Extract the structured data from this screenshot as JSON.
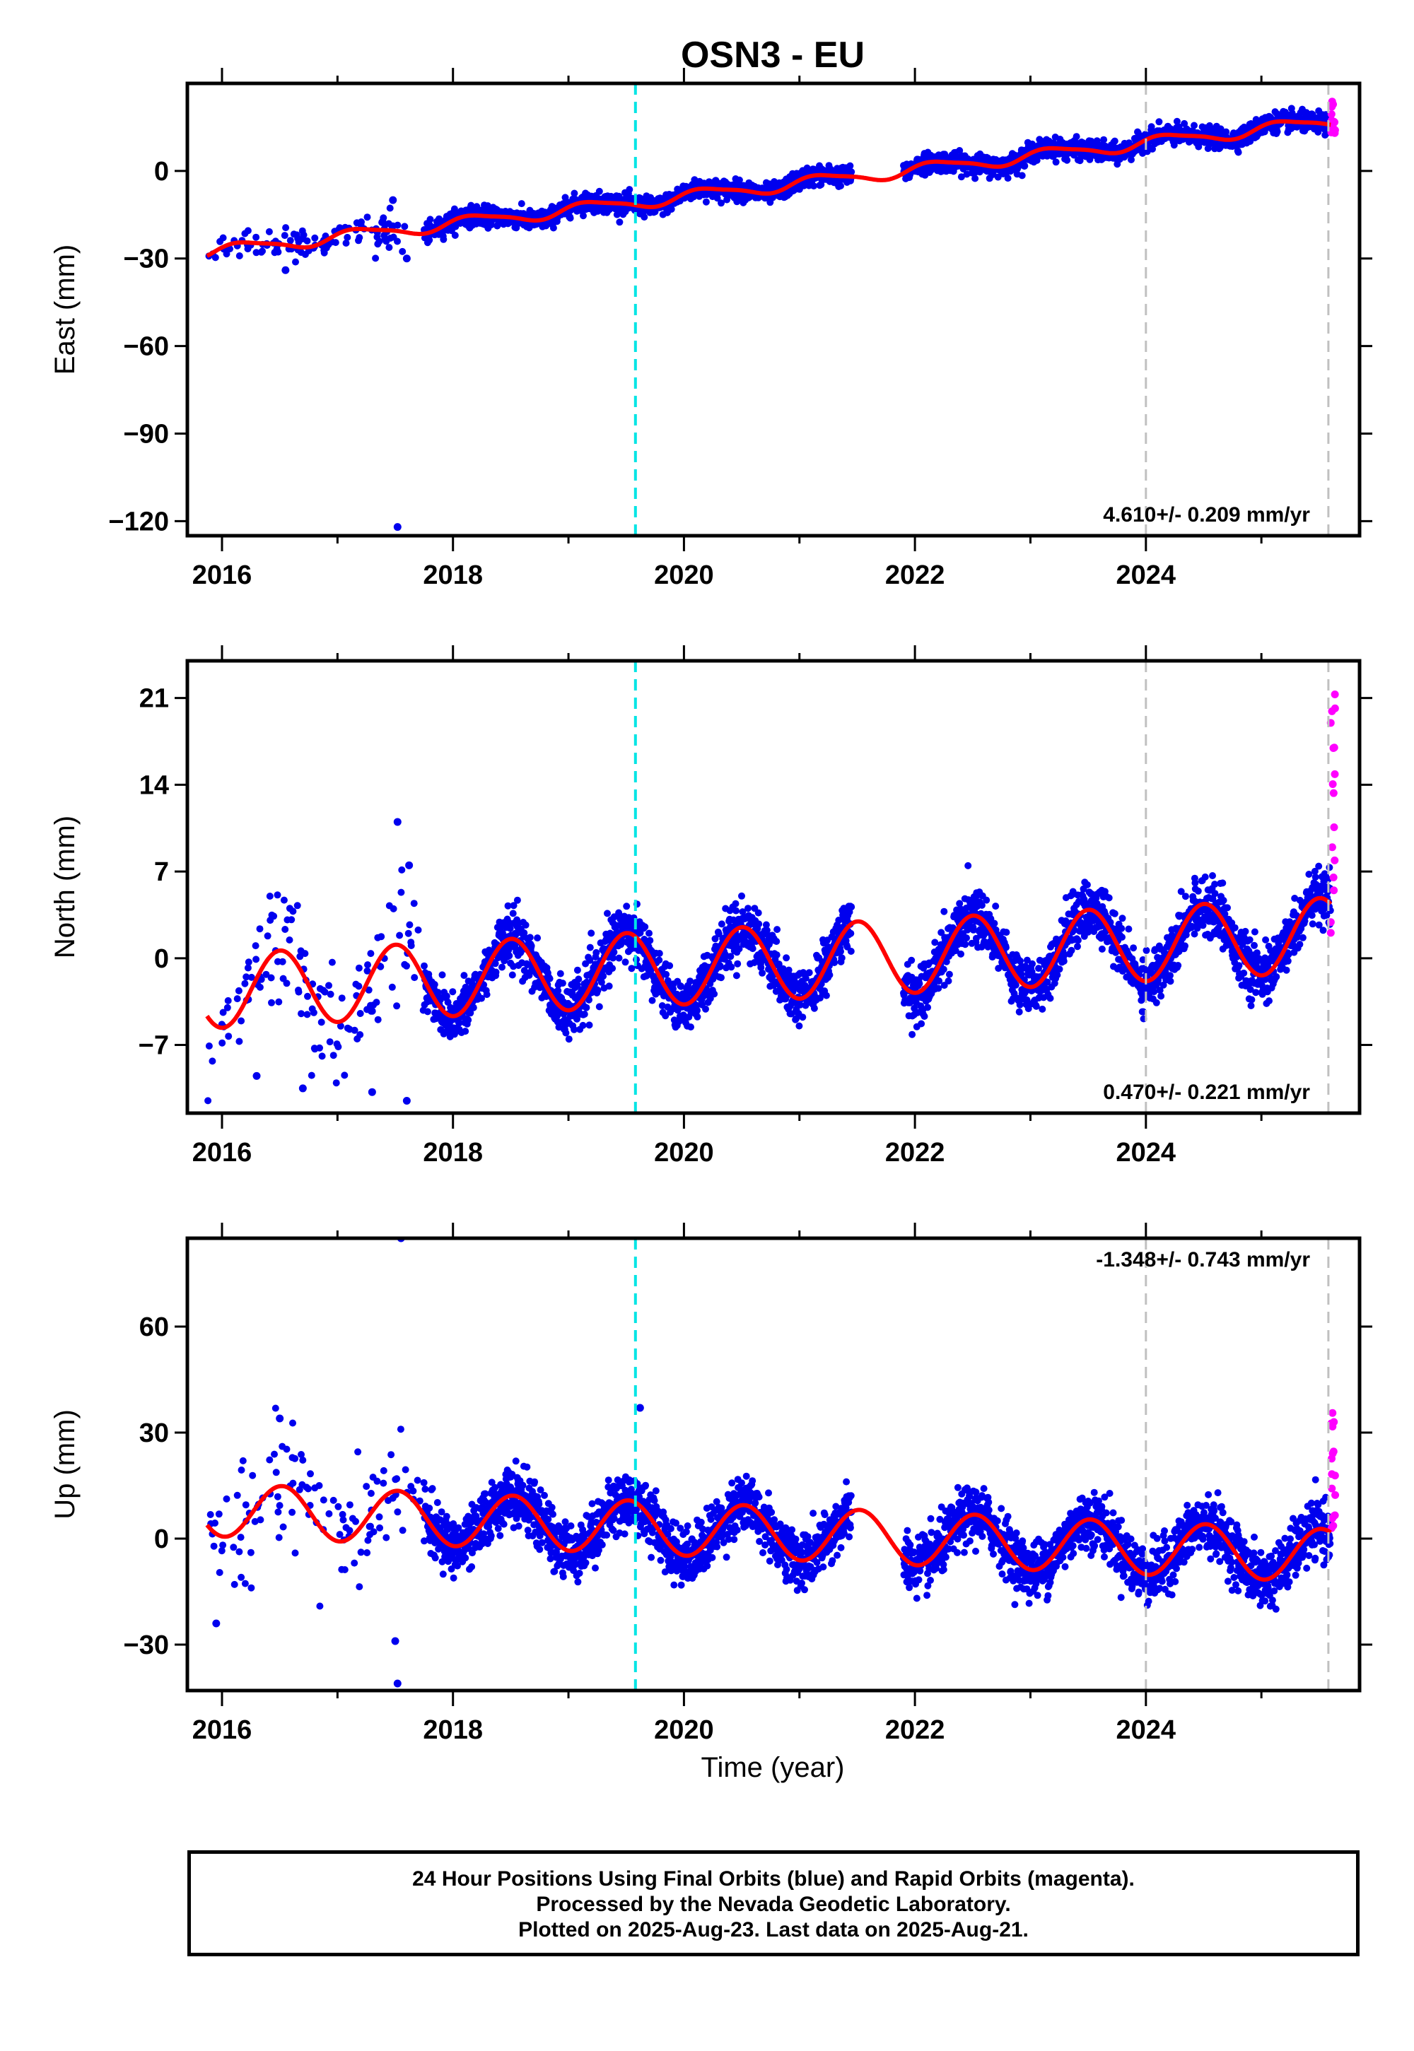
{
  "title": "OSN3 - EU",
  "xlabel": "Time (year)",
  "colors": {
    "final": "#0000ee",
    "rapid": "#ff00ff",
    "model": "#ff0000",
    "marker_cyan": "#00e5e5",
    "marker_gray": "#c0c0c0"
  },
  "footer": {
    "line1": "24 Hour Positions Using Final Orbits (blue) and Rapid Orbits (magenta).",
    "line2": "Processed by the Nevada Geodetic Laboratory.",
    "line3": "Plotted on 2025-Aug-23. Last data on 2025-Aug-21."
  },
  "chart_data": [
    {
      "type": "scatter",
      "panel": "east",
      "ylabel": "East (mm)",
      "rate_label": "4.610+/- 0.209 mm/yr",
      "xlim": [
        2015.7,
        2025.85
      ],
      "ylim": [
        -125,
        30
      ],
      "xticks": [
        2016,
        2018,
        2020,
        2022,
        2024
      ],
      "yticks": [
        0,
        -30,
        -60,
        -90,
        -120
      ],
      "vlines": [
        {
          "x": 2019.58,
          "color": "cyan"
        },
        {
          "x": 2024.0,
          "color": "gray"
        },
        {
          "x": 2025.58,
          "color": "gray"
        }
      ],
      "gaps": [
        [
          2017.6,
          2017.75
        ],
        [
          2021.45,
          2021.9
        ]
      ],
      "model": {
        "breaks": [
          2019.58
        ],
        "offsets": [
          0,
          0
        ],
        "anchor": 2020.5,
        "base": -6.5,
        "rate": 4.61,
        "seasonal": [
          {
            "amp": 2.0,
            "period": 1.0,
            "phase": 0.3
          },
          {
            "amp": 0.5,
            "period": 0.5,
            "phase": 1.0
          }
        ],
        "noise": 1.6,
        "early_noise": 2.8,
        "key_points": [
          {
            "x": 2016.0,
            "y": -25
          },
          {
            "x": 2018.0,
            "y": -15
          },
          {
            "x": 2020.0,
            "y": -5
          },
          {
            "x": 2022.0,
            "y": 5
          },
          {
            "x": 2024.0,
            "y": 13
          },
          {
            "x": 2025.5,
            "y": 17
          }
        ]
      },
      "outliers": [
        {
          "x": 2017.52,
          "y": -122
        },
        {
          "x": 2017.6,
          "y": -30
        },
        {
          "x": 2016.55,
          "y": -34
        },
        {
          "x": 2017.48,
          "y": -10
        }
      ],
      "rapid": {
        "start": 2025.6,
        "end": 2025.64,
        "ymin": 12,
        "ymax": 26
      }
    },
    {
      "type": "scatter",
      "panel": "north",
      "ylabel": "North (mm)",
      "rate_label": "0.470+/- 0.221 mm/yr",
      "xlim": [
        2015.7,
        2025.85
      ],
      "ylim": [
        -12.5,
        24
      ],
      "xticks": [
        2016,
        2018,
        2020,
        2022,
        2024
      ],
      "yticks": [
        21,
        14,
        7,
        0,
        -7
      ],
      "vlines": [
        {
          "x": 2019.58,
          "color": "cyan"
        },
        {
          "x": 2024.0,
          "color": "gray"
        },
        {
          "x": 2025.58,
          "color": "gray"
        }
      ],
      "gaps": [
        [
          2021.45,
          2021.9
        ]
      ],
      "model": {
        "anchor": 2020.5,
        "base": -0.5,
        "rate": 0.47,
        "seasonal": [
          {
            "amp": 3.0,
            "period": 1.0,
            "phase": -1.6
          }
        ],
        "noise": 1.1,
        "early_noise": 2.6
      },
      "outliers": [
        {
          "x": 2017.52,
          "y": 11
        },
        {
          "x": 2017.62,
          "y": 7.5
        },
        {
          "x": 2017.6,
          "y": -11.5
        },
        {
          "x": 2016.3,
          "y": -9.5
        },
        {
          "x": 2016.7,
          "y": -10.5
        },
        {
          "x": 2017.3,
          "y": -10.8
        }
      ],
      "rapid": {
        "start": 2025.6,
        "end": 2025.64,
        "ymin": 2,
        "ymax": 23
      }
    },
    {
      "type": "scatter",
      "panel": "up",
      "ylabel": "Up (mm)",
      "rate_label": "-1.348+/- 0.743 mm/yr",
      "xlim": [
        2015.7,
        2025.85
      ],
      "ylim": [
        -43,
        85
      ],
      "xticks": [
        2016,
        2018,
        2020,
        2022,
        2024
      ],
      "yticks": [
        60,
        30,
        0,
        -30
      ],
      "vlines": [
        {
          "x": 2019.58,
          "color": "cyan"
        },
        {
          "x": 2024.0,
          "color": "gray"
        },
        {
          "x": 2025.58,
          "color": "gray"
        }
      ],
      "gaps": [
        [
          2021.45,
          2021.9
        ]
      ],
      "model": {
        "anchor": 2020.5,
        "base": 2.0,
        "rate": -1.348,
        "seasonal": [
          {
            "amp": 7.5,
            "period": 1.0,
            "phase": -1.7
          }
        ],
        "noise": 4.0,
        "early_noise": 9.0
      },
      "outliers": [
        {
          "x": 2017.55,
          "y": 85
        },
        {
          "x": 2017.52,
          "y": -41
        },
        {
          "x": 2017.5,
          "y": -29
        },
        {
          "x": 2016.5,
          "y": 34
        },
        {
          "x": 2019.62,
          "y": 37
        },
        {
          "x": 2015.95,
          "y": -24
        }
      ],
      "rapid": {
        "start": 2025.6,
        "end": 2025.64,
        "ymin": 2,
        "ymax": 36
      }
    }
  ]
}
